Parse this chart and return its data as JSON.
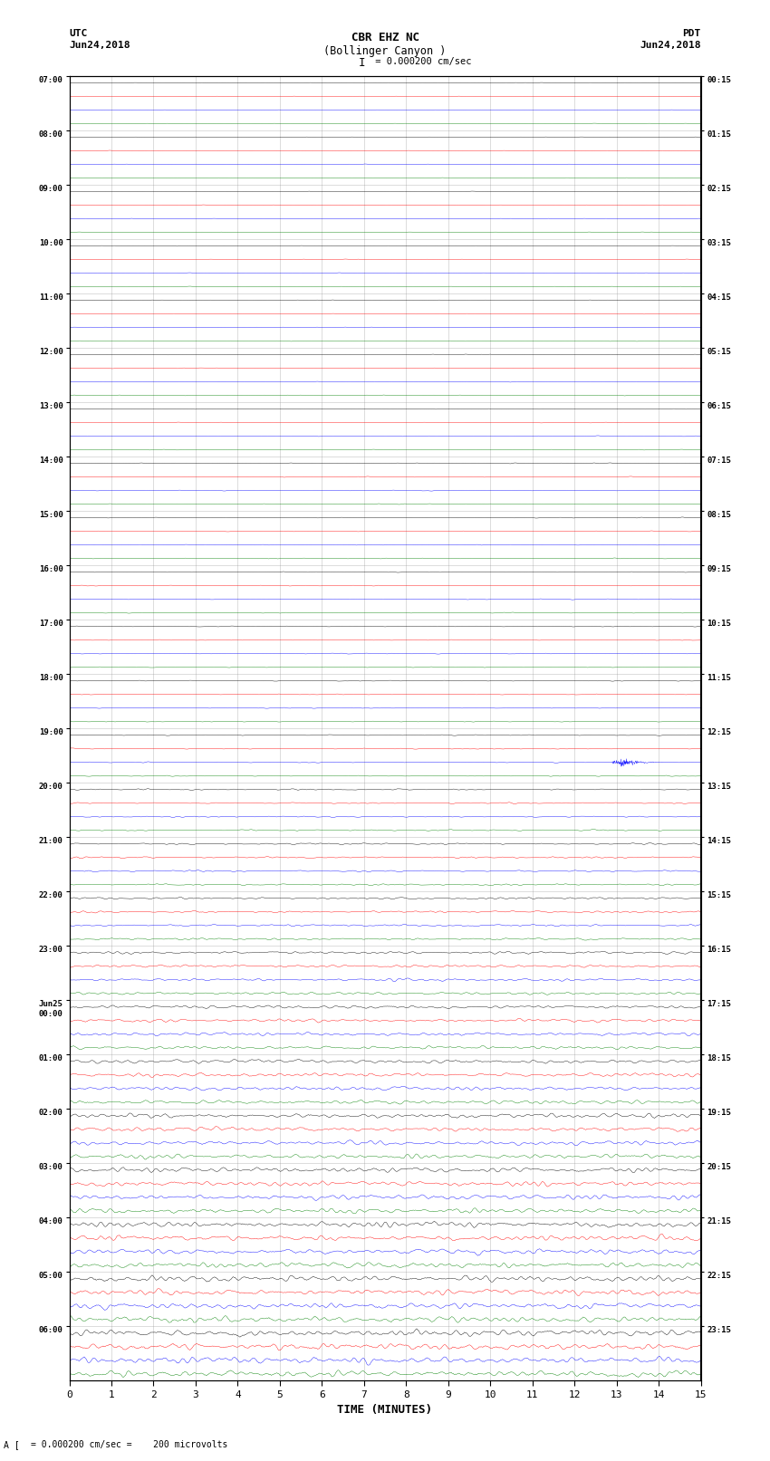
{
  "title_line1": "CBR EHZ NC",
  "title_line2": "(Bollinger Canyon )",
  "scale_label": "I = 0.000200 cm/sec",
  "left_header_line1": "UTC",
  "left_header_line2": "Jun24,2018",
  "right_header_line1": "PDT",
  "right_header_line2": "Jun24,2018",
  "xlabel": "TIME (MINUTES)",
  "footer_text": "= 0.000200 cm/sec =    200 microvolts",
  "left_times": [
    "07:00",
    "08:00",
    "09:00",
    "10:00",
    "11:00",
    "12:00",
    "13:00",
    "14:00",
    "15:00",
    "16:00",
    "17:00",
    "18:00",
    "19:00",
    "20:00",
    "21:00",
    "22:00",
    "23:00",
    "Jun25\n00:00",
    "01:00",
    "02:00",
    "03:00",
    "04:00",
    "05:00",
    "06:00"
  ],
  "right_times": [
    "00:15",
    "01:15",
    "02:15",
    "03:15",
    "04:15",
    "05:15",
    "06:15",
    "07:15",
    "08:15",
    "09:15",
    "10:15",
    "11:15",
    "12:15",
    "13:15",
    "14:15",
    "15:15",
    "16:15",
    "17:15",
    "18:15",
    "19:15",
    "20:15",
    "21:15",
    "22:15",
    "23:15"
  ],
  "n_rows": 24,
  "n_traces_per_row": 4,
  "colors": [
    "black",
    "red",
    "blue",
    "green"
  ],
  "minutes_per_row": 15,
  "bg_color": "white",
  "grid_color": "#999999",
  "font_family": "monospace"
}
